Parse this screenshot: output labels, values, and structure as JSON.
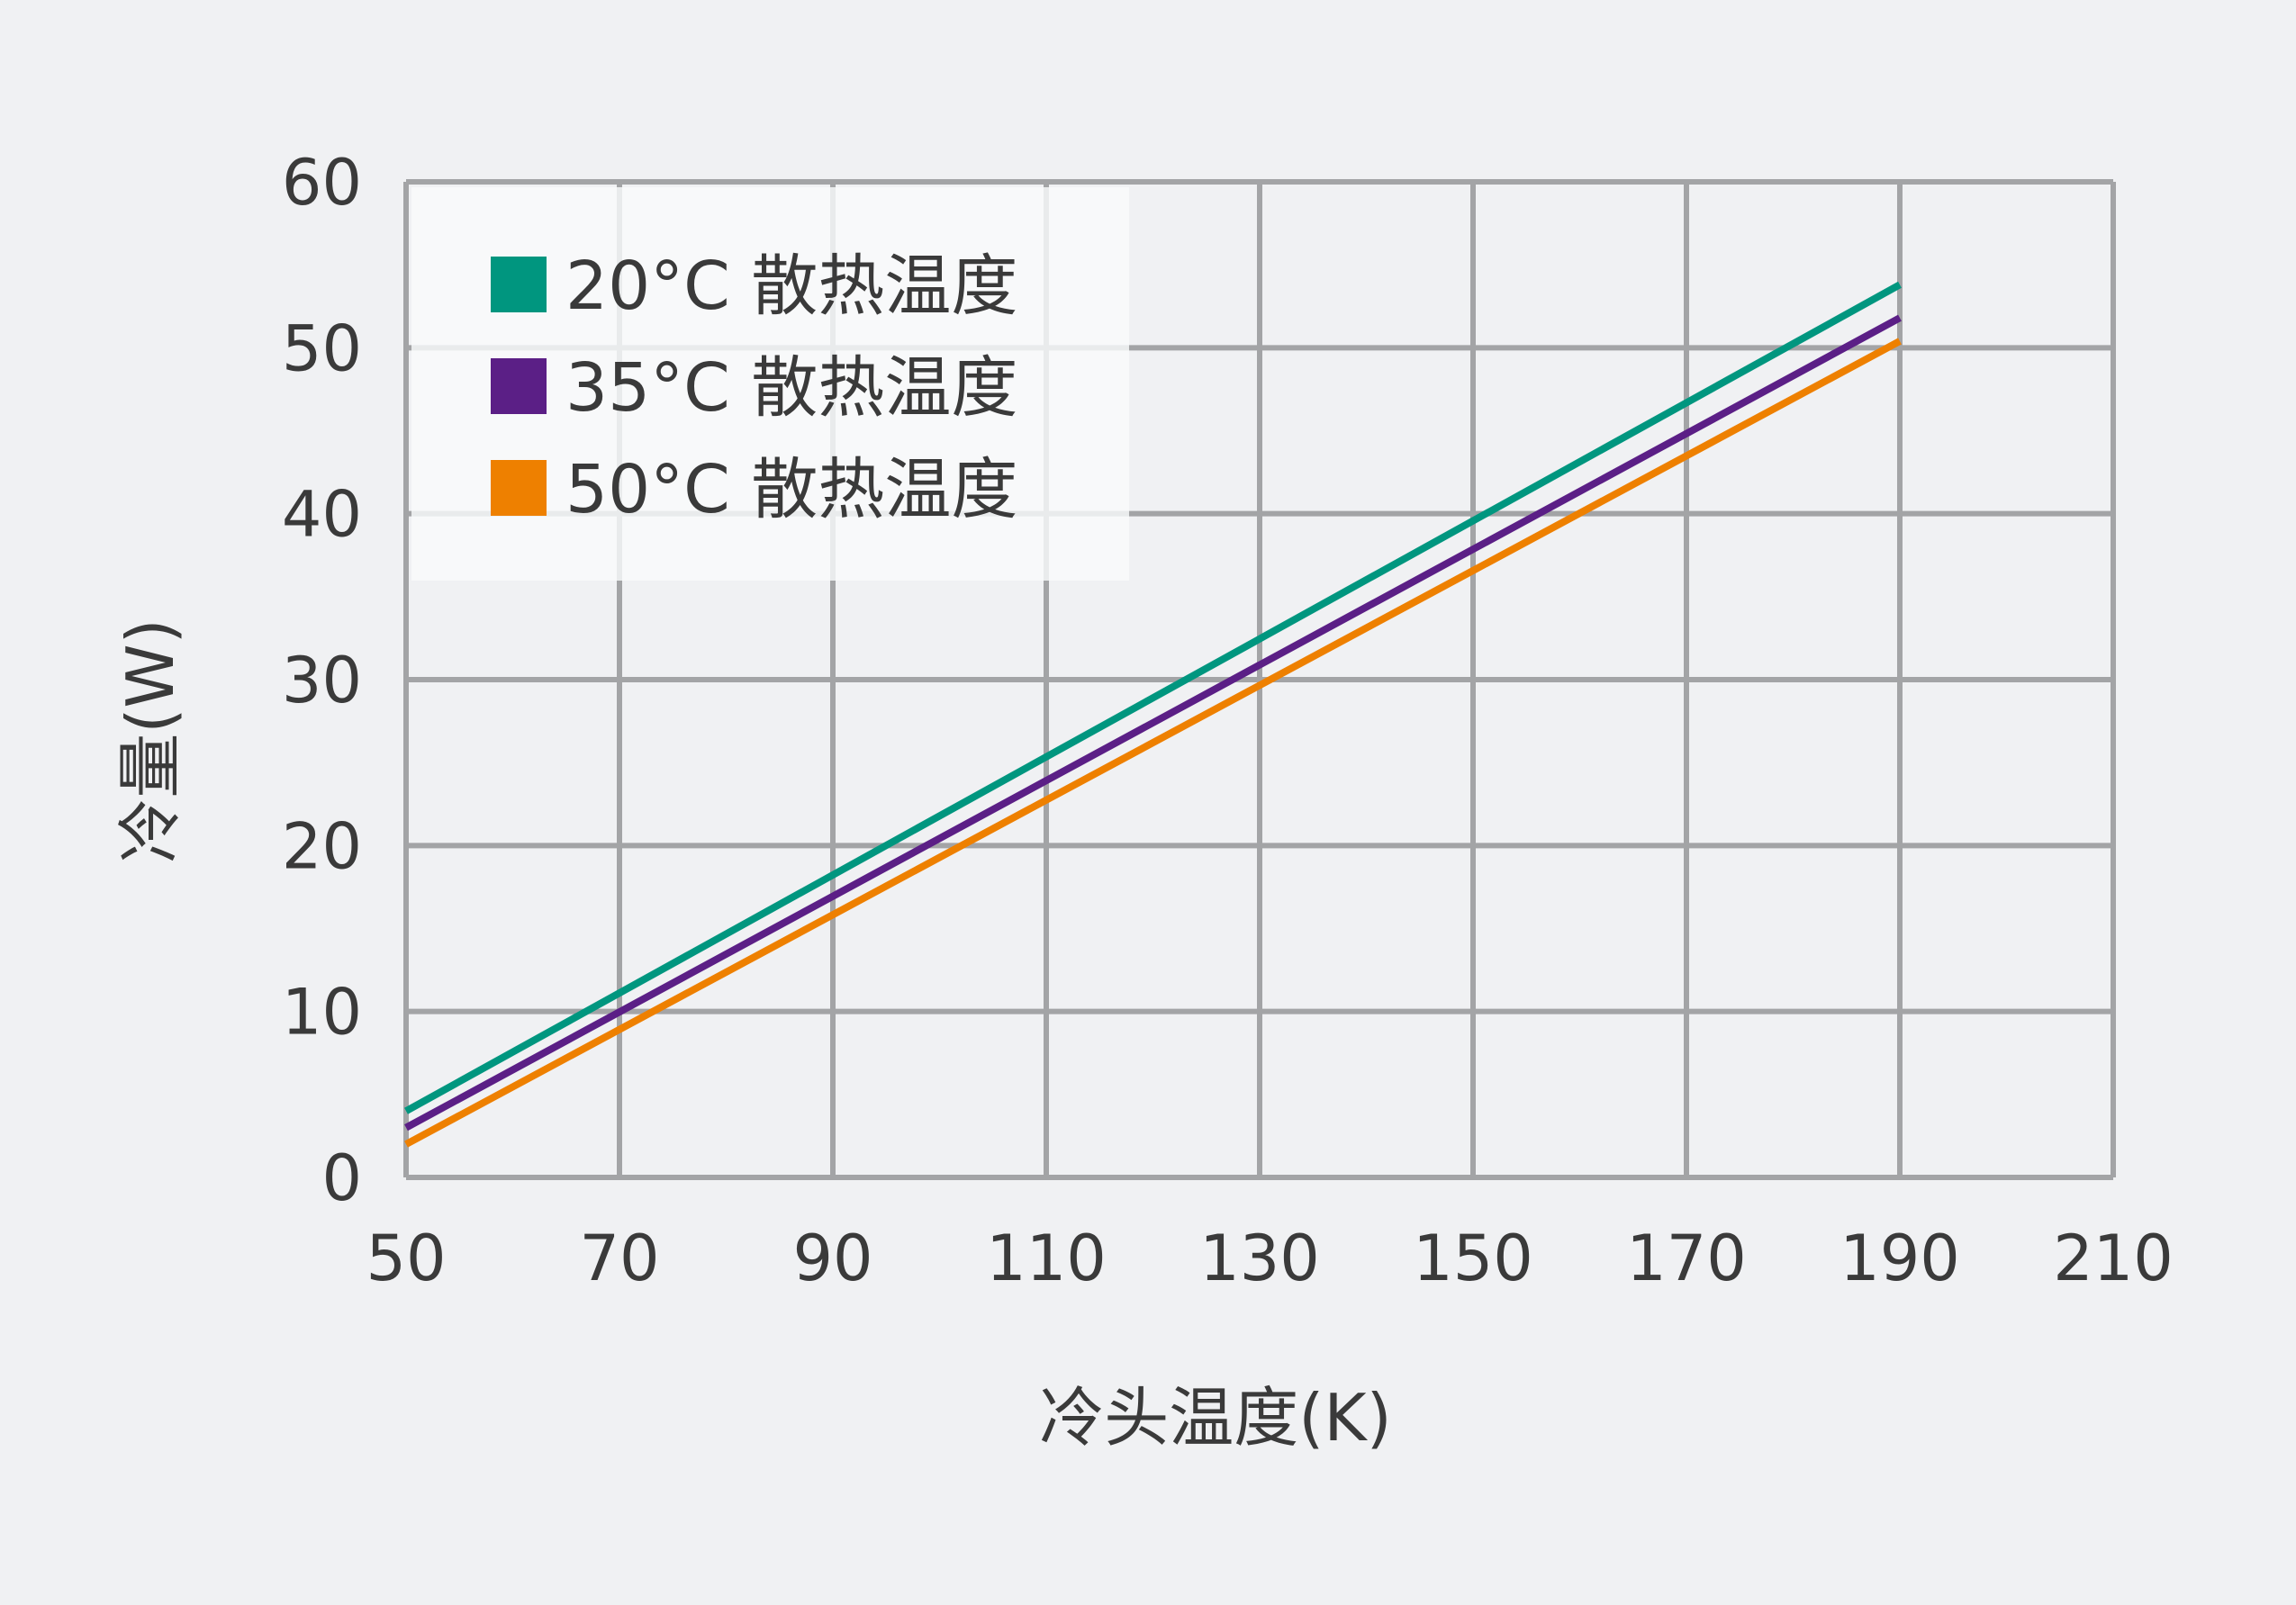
{
  "chart_data": {
    "type": "line",
    "title": "",
    "xlabel": "冷头温度(K)",
    "ylabel": "冷量(W)",
    "xlim": [
      50,
      210
    ],
    "ylim": [
      0,
      60
    ],
    "xticks": [
      50,
      70,
      90,
      110,
      130,
      150,
      170,
      190,
      210
    ],
    "yticks": [
      0,
      10,
      20,
      30,
      40,
      50,
      60
    ],
    "grid": true,
    "legend_position": "top-left",
    "series": [
      {
        "name": "20°C 散热温度",
        "color": "#00967f",
        "x": [
          50,
          190
        ],
        "y": [
          4.0,
          53.8
        ]
      },
      {
        "name": "35°C 散热温度",
        "color": "#5b1f86",
        "x": [
          50,
          190
        ],
        "y": [
          3.0,
          51.8
        ]
      },
      {
        "name": "50°C 散热温度",
        "color": "#ee8000",
        "x": [
          50,
          190
        ],
        "y": [
          2.0,
          50.4
        ]
      }
    ]
  }
}
